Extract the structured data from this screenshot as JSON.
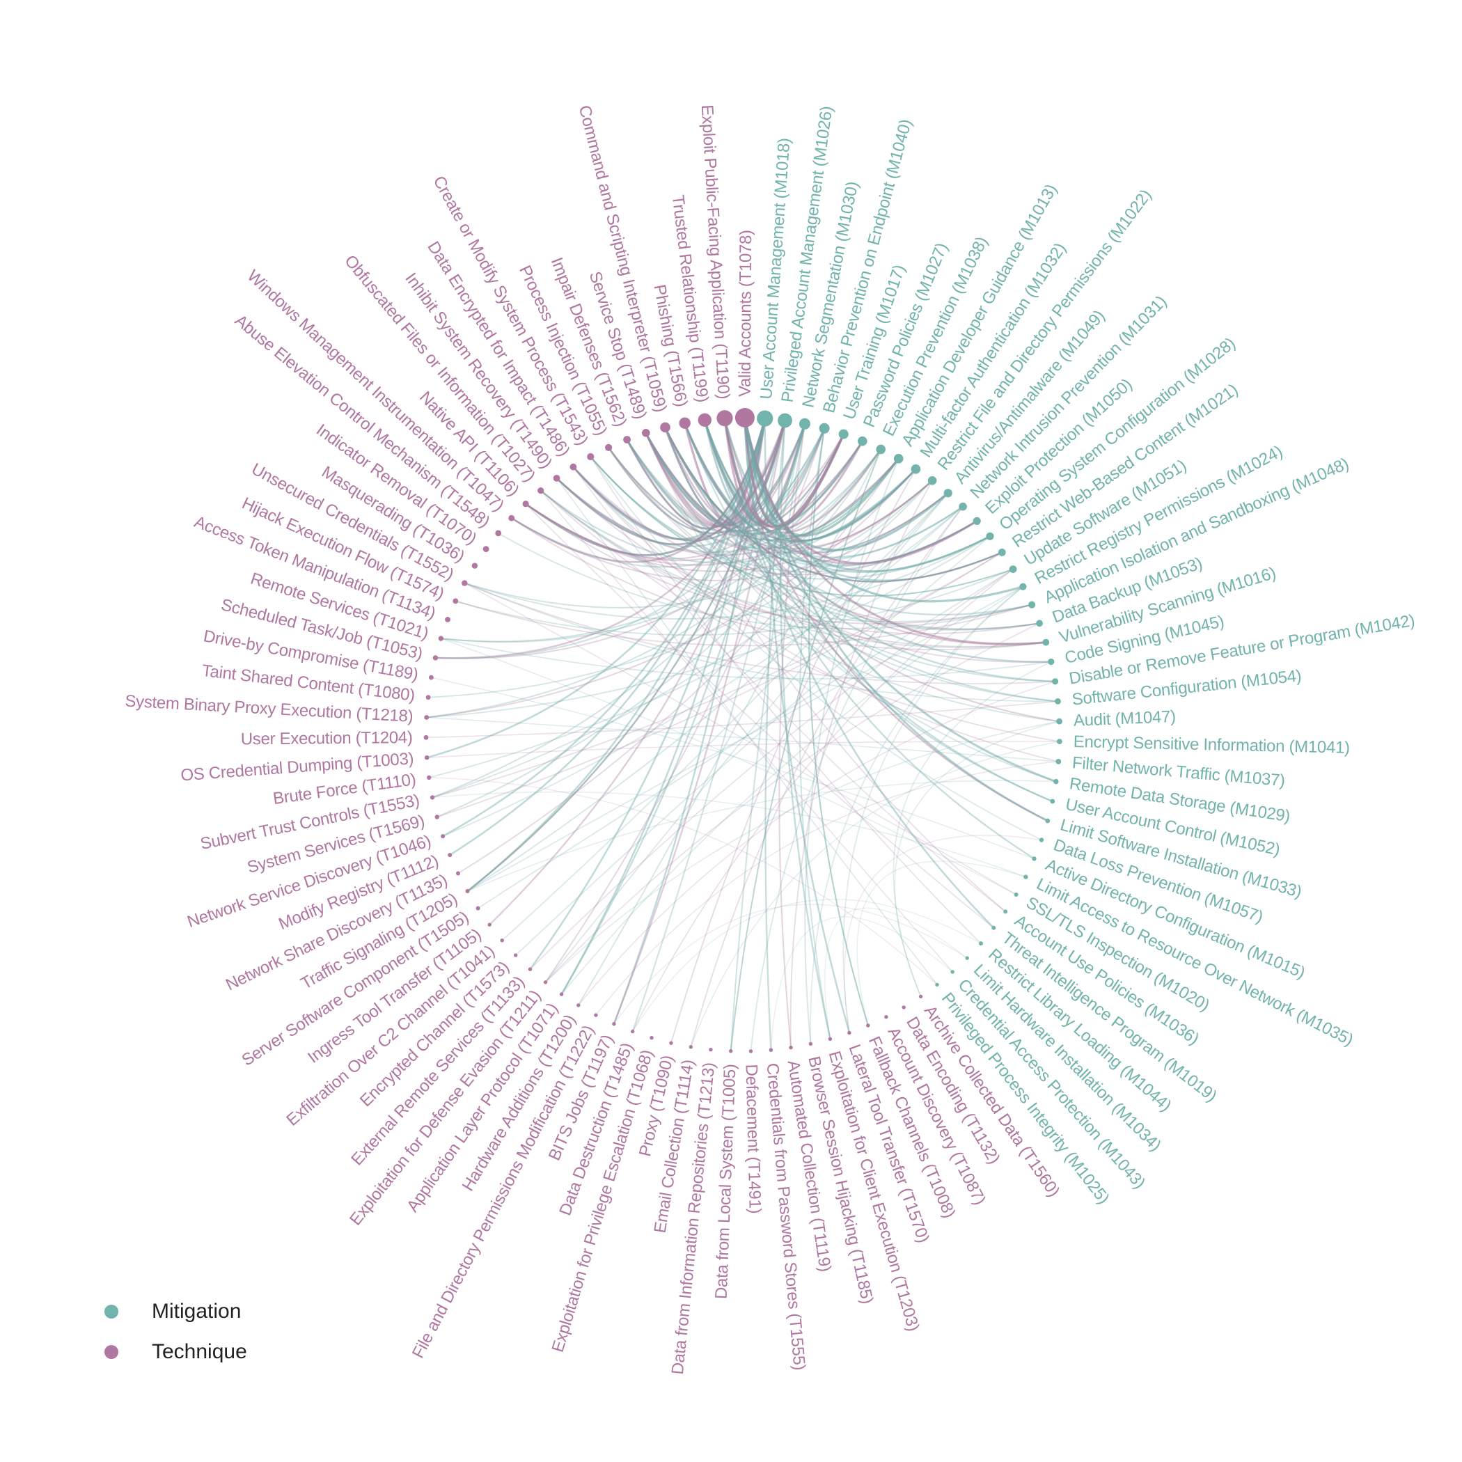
{
  "colors": {
    "mitigation": "#72b3ab",
    "technique": "#b077a1",
    "link_mitigation": "#6fa9a6",
    "link_technique": "#a97e9f"
  },
  "legend": {
    "mitigation_label": "Mitigation",
    "technique_label": "Technique"
  },
  "nodes": [
    {
      "label": "User Account Management (M1018)",
      "type": "mitigation",
      "weight": 4
    },
    {
      "label": "Privileged Account Management (M1026)",
      "type": "mitigation",
      "weight": 3.5
    },
    {
      "label": "Network Segmentation (M1030)",
      "type": "mitigation",
      "weight": 2.5
    },
    {
      "label": "Behavior Prevention on Endpoint (M1040)",
      "type": "mitigation",
      "weight": 2.3
    },
    {
      "label": "User Training (M1017)",
      "type": "mitigation",
      "weight": 2.1
    },
    {
      "label": "Password Policies (M1027)",
      "type": "mitigation",
      "weight": 2
    },
    {
      "label": "Execution Prevention (M1038)",
      "type": "mitigation",
      "weight": 2
    },
    {
      "label": "Application Developer Guidance (M1013)",
      "type": "mitigation",
      "weight": 2
    },
    {
      "label": "Multi-factor Authentication (M1032)",
      "type": "mitigation",
      "weight": 2
    },
    {
      "label": "Restrict File and Directory Permissions (M1022)",
      "type": "mitigation",
      "weight": 1.8
    },
    {
      "label": "Antivirus/Antimalware (M1049)",
      "type": "mitigation",
      "weight": 1.7
    },
    {
      "label": "Network Intrusion Prevention (M1031)",
      "type": "mitigation",
      "weight": 1.6
    },
    {
      "label": "Exploit Protection (M1050)",
      "type": "mitigation",
      "weight": 1.5
    },
    {
      "label": "Operating System Configuration (M1028)",
      "type": "mitigation",
      "weight": 1.5
    },
    {
      "label": "Restrict Web-Based Content (M1021)",
      "type": "mitigation",
      "weight": 1.4
    },
    {
      "label": "Update Software (M1051)",
      "type": "mitigation",
      "weight": 1.4
    },
    {
      "label": "Restrict Registry Permissions (M1024)",
      "type": "mitigation",
      "weight": 1.3
    },
    {
      "label": "Application Isolation and Sandboxing (M1048)",
      "type": "mitigation",
      "weight": 1.3
    },
    {
      "label": "Data Backup (M1053)",
      "type": "mitigation",
      "weight": 1.2
    },
    {
      "label": "Vulnerability Scanning (M1016)",
      "type": "mitigation",
      "weight": 1.2
    },
    {
      "label": "Code Signing (M1045)",
      "type": "mitigation",
      "weight": 1.1
    },
    {
      "label": "Disable or Remove Feature or Program (M1042)",
      "type": "mitigation",
      "weight": 1.1
    },
    {
      "label": "Software Configuration (M1054)",
      "type": "mitigation",
      "weight": 1
    },
    {
      "label": "Audit (M1047)",
      "type": "mitigation",
      "weight": 1
    },
    {
      "label": "Encrypt Sensitive Information (M1041)",
      "type": "mitigation",
      "weight": 0.8
    },
    {
      "label": "Filter Network Traffic (M1037)",
      "type": "mitigation",
      "weight": 0.8
    },
    {
      "label": "Remote Data Storage (M1029)",
      "type": "mitigation",
      "weight": 0.7
    },
    {
      "label": "User Account Control (M1052)",
      "type": "mitigation",
      "weight": 0.6
    },
    {
      "label": "Limit Software Installation (M1033)",
      "type": "mitigation",
      "weight": 0.6
    },
    {
      "label": "Data Loss Prevention (M1057)",
      "type": "mitigation",
      "weight": 0.5
    },
    {
      "label": "Active Directory Configuration (M1015)",
      "type": "mitigation",
      "weight": 0.5
    },
    {
      "label": "Limit Access to Resource Over Network (M1035)",
      "type": "mitigation",
      "weight": 0.5
    },
    {
      "label": "SSL/TLS Inspection (M1020)",
      "type": "mitigation",
      "weight": 0.4
    },
    {
      "label": "Account Use Policies (M1036)",
      "type": "mitigation",
      "weight": 0.4
    },
    {
      "label": "Threat Intelligence Program (M1019)",
      "type": "mitigation",
      "weight": 0.4
    },
    {
      "label": "Restrict Library Loading (M1044)",
      "type": "mitigation",
      "weight": 0.4
    },
    {
      "label": "Limit Hardware Installation (M1034)",
      "type": "mitigation",
      "weight": 0.3
    },
    {
      "label": "Credential Access Protection (M1043)",
      "type": "mitigation",
      "weight": 0.3
    },
    {
      "label": "Privileged Process Integrity (M1025)",
      "type": "mitigation",
      "weight": 0.3
    },
    {
      "label": "Archive Collected Data (T1560)",
      "type": "technique",
      "weight": 0.3
    },
    {
      "label": "Data Encoding (T1132)",
      "type": "technique",
      "weight": 0.3
    },
    {
      "label": "Account Discovery (T1087)",
      "type": "technique",
      "weight": 0.3
    },
    {
      "label": "Fallback Channels (T1008)",
      "type": "technique",
      "weight": 0.3
    },
    {
      "label": "Lateral Tool Transfer (T1570)",
      "type": "technique",
      "weight": 0.3
    },
    {
      "label": "Exploitation for Client Execution (T1203)",
      "type": "technique",
      "weight": 0.3
    },
    {
      "label": "Browser Session Hijacking (T1185)",
      "type": "technique",
      "weight": 0.3
    },
    {
      "label": "Automated Collection (T1119)",
      "type": "technique",
      "weight": 0.3
    },
    {
      "label": "Credentials from Password Stores (T1555)",
      "type": "technique",
      "weight": 0.3
    },
    {
      "label": "Defacement (T1491)",
      "type": "technique",
      "weight": 0.3
    },
    {
      "label": "Data from Local System (T1005)",
      "type": "technique",
      "weight": 0.3
    },
    {
      "label": "Data from Information Repositories (T1213)",
      "type": "technique",
      "weight": 0.3
    },
    {
      "label": "Email Collection (T1114)",
      "type": "technique",
      "weight": 0.3
    },
    {
      "label": "Proxy (T1090)",
      "type": "technique",
      "weight": 0.3
    },
    {
      "label": "Exploitation for Privilege Escalation (T1068)",
      "type": "technique",
      "weight": 0.3
    },
    {
      "label": "Data Destruction (T1485)",
      "type": "technique",
      "weight": 0.3
    },
    {
      "label": "BITS Jobs (T1197)",
      "type": "technique",
      "weight": 0.3
    },
    {
      "label": "File and Directory Permissions Modification (T1222)",
      "type": "technique",
      "weight": 0.3
    },
    {
      "label": "Hardware Additions (T1200)",
      "type": "technique",
      "weight": 0.3
    },
    {
      "label": "Application Layer Protocol (T1071)",
      "type": "technique",
      "weight": 0.3
    },
    {
      "label": "Exploitation for Defense Evasion (T1211)",
      "type": "technique",
      "weight": 0.3
    },
    {
      "label": "External Remote Services (T1133)",
      "type": "technique",
      "weight": 0.3
    },
    {
      "label": "Encrypted Channel (T1573)",
      "type": "technique",
      "weight": 0.3
    },
    {
      "label": "Exfiltration Over C2 Channel (T1041)",
      "type": "technique",
      "weight": 0.3
    },
    {
      "label": "Ingress Tool Transfer (T1105)",
      "type": "technique",
      "weight": 0.3
    },
    {
      "label": "Server Software Component (T1505)",
      "type": "technique",
      "weight": 0.4
    },
    {
      "label": "Traffic Signaling (T1205)",
      "type": "technique",
      "weight": 0.4
    },
    {
      "label": "Network Share Discovery (T1135)",
      "type": "technique",
      "weight": 0.4
    },
    {
      "label": "Modify Registry (T1112)",
      "type": "technique",
      "weight": 0.4
    },
    {
      "label": "Network Service Discovery (T1046)",
      "type": "technique",
      "weight": 0.4
    },
    {
      "label": "System Services (T1569)",
      "type": "technique",
      "weight": 0.5
    },
    {
      "label": "Subvert Trust Controls (T1553)",
      "type": "technique",
      "weight": 0.5
    },
    {
      "label": "Brute Force (T1110)",
      "type": "technique",
      "weight": 0.5
    },
    {
      "label": "OS Credential Dumping (T1003)",
      "type": "technique",
      "weight": 0.5
    },
    {
      "label": "User Execution (T1204)",
      "type": "technique",
      "weight": 0.6
    },
    {
      "label": "System Binary Proxy Execution (T1218)",
      "type": "technique",
      "weight": 0.6
    },
    {
      "label": "Taint Shared Content (T1080)",
      "type": "technique",
      "weight": 0.6
    },
    {
      "label": "Drive-by Compromise (T1189)",
      "type": "technique",
      "weight": 0.6
    },
    {
      "label": "Scheduled Task/Job (T1053)",
      "type": "technique",
      "weight": 0.7
    },
    {
      "label": "Remote Services (T1021)",
      "type": "technique",
      "weight": 0.7
    },
    {
      "label": "Access Token Manipulation (T1134)",
      "type": "technique",
      "weight": 0.8
    },
    {
      "label": "Hijack Execution Flow (T1574)",
      "type": "technique",
      "weight": 0.8
    },
    {
      "label": "Unsecured Credentials (T1552)",
      "type": "technique",
      "weight": 0.9
    },
    {
      "label": "Masquerading (T1036)",
      "type": "technique",
      "weight": 0.9
    },
    {
      "label": "Indicator Removal (T1070)",
      "type": "technique",
      "weight": 1
    },
    {
      "label": "Abuse Elevation Control Mechanism (T1548)",
      "type": "technique",
      "weight": 1
    },
    {
      "label": "Windows Management Instrumentation (T1047)",
      "type": "technique",
      "weight": 1
    },
    {
      "label": "Native API (T1106)",
      "type": "technique",
      "weight": 1.1
    },
    {
      "label": "Obfuscated Files or Information (T1027)",
      "type": "technique",
      "weight": 1.1
    },
    {
      "label": "Inhibit System Recovery (T1490)",
      "type": "technique",
      "weight": 1.2
    },
    {
      "label": "Data Encrypted for Impact (T1486)",
      "type": "technique",
      "weight": 1.2
    },
    {
      "label": "Create or Modify System Process (T1543)",
      "type": "technique",
      "weight": 1.3
    },
    {
      "label": "Process Injection (T1055)",
      "type": "technique",
      "weight": 1.3
    },
    {
      "label": "Impair Defenses (T1562)",
      "type": "technique",
      "weight": 1.4
    },
    {
      "label": "Service Stop (T1489)",
      "type": "technique",
      "weight": 1.6
    },
    {
      "label": "Command and Scripting Interpreter (T1059)",
      "type": "technique",
      "weight": 2.2
    },
    {
      "label": "Phishing (T1566)",
      "type": "technique",
      "weight": 2.6
    },
    {
      "label": "Trusted Relationship (T1199)",
      "type": "technique",
      "weight": 3.2
    },
    {
      "label": "Exploit Public-Facing Application (T1190)",
      "type": "technique",
      "weight": 4
    },
    {
      "label": "Valid Accounts (T1078)",
      "type": "technique",
      "weight": 5
    }
  ]
}
